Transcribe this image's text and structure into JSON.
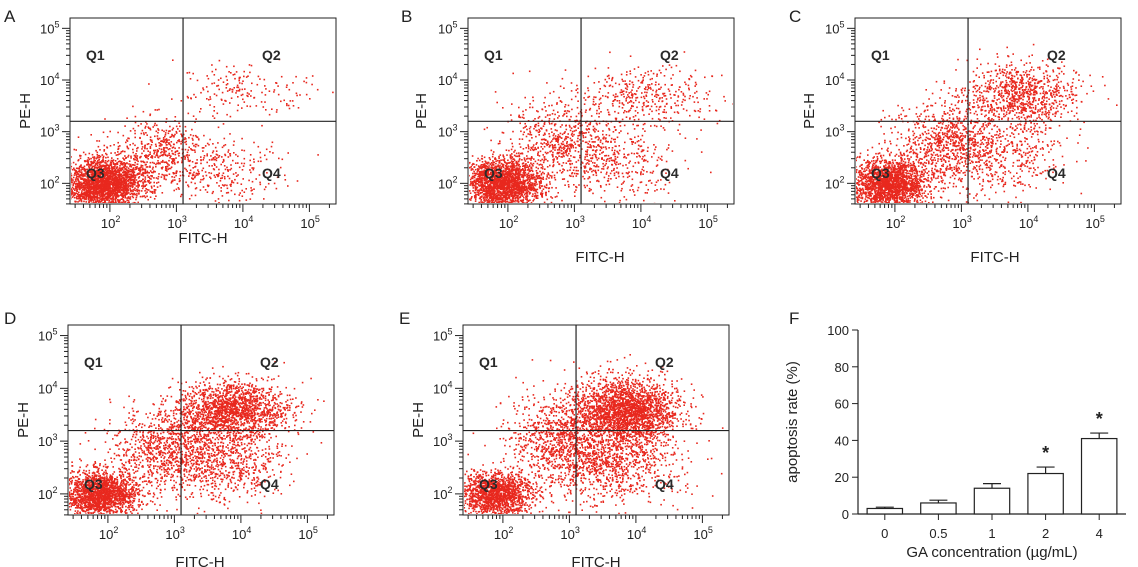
{
  "figure": {
    "panels": [
      {
        "letter": "A",
        "xlabel": "FITC-H",
        "ylabel": "PE-H"
      },
      {
        "letter": "B",
        "xlabel": "FITC-H",
        "ylabel": "PE-H"
      },
      {
        "letter": "C",
        "xlabel": "FITC-H",
        "ylabel": "PE-H"
      },
      {
        "letter": "D",
        "xlabel": "FITC-H",
        "ylabel": "PE-H"
      },
      {
        "letter": "E",
        "xlabel": "FITC-H",
        "ylabel": "PE-H"
      },
      {
        "letter": "F"
      }
    ],
    "quadrant_labels": [
      "Q1",
      "Q2",
      "Q3",
      "Q4"
    ]
  },
  "colors": {
    "dots": "#e8281e",
    "ink": "#222222"
  },
  "chart_data": [
    {
      "type": "scatter",
      "panel": "A",
      "xlabel": "FITC-H",
      "ylabel": "PE-H",
      "scale": "log10",
      "x_ticks": [
        2,
        3,
        4,
        5
      ],
      "y_ticks": [
        2,
        3,
        4,
        5
      ],
      "xlim": [
        1.4,
        5.4
      ],
      "ylim": [
        1.6,
        5.2
      ],
      "gate": {
        "x": 3.1,
        "y": 3.2
      },
      "populations": [
        {
          "quadrant": "Q3",
          "center": [
            1.9,
            2.0
          ],
          "spread": [
            0.3,
            0.25
          ],
          "count": 2400
        },
        {
          "quadrant": "Q4",
          "center": [
            3.6,
            2.3
          ],
          "spread": [
            0.5,
            0.35
          ],
          "count": 300
        },
        {
          "quadrant": "Q2",
          "center": [
            4.0,
            3.8
          ],
          "spread": [
            0.5,
            0.25
          ],
          "count": 180
        },
        {
          "quadrant": "Q3-Q4 bridge",
          "center": [
            2.7,
            2.6
          ],
          "spread": [
            0.35,
            0.35
          ],
          "count": 500
        }
      ]
    },
    {
      "type": "scatter",
      "panel": "B",
      "xlabel": "FITC-H",
      "ylabel": "PE-H",
      "scale": "log10",
      "x_ticks": [
        2,
        3,
        4,
        5
      ],
      "y_ticks": [
        2,
        3,
        4,
        5
      ],
      "xlim": [
        1.4,
        5.4
      ],
      "ylim": [
        1.6,
        5.2
      ],
      "gate": {
        "x": 3.1,
        "y": 3.2
      },
      "populations": [
        {
          "quadrant": "Q3",
          "center": [
            1.9,
            2.0
          ],
          "spread": [
            0.3,
            0.25
          ],
          "count": 2200
        },
        {
          "quadrant": "Q4",
          "center": [
            3.6,
            2.4
          ],
          "spread": [
            0.5,
            0.4
          ],
          "count": 350
        },
        {
          "quadrant": "Q2",
          "center": [
            4.0,
            3.7
          ],
          "spread": [
            0.55,
            0.3
          ],
          "count": 400
        },
        {
          "quadrant": "Q3-Q4 bridge",
          "center": [
            2.8,
            2.8
          ],
          "spread": [
            0.4,
            0.4
          ],
          "count": 600
        }
      ]
    },
    {
      "type": "scatter",
      "panel": "C",
      "xlabel": "FITC-H",
      "ylabel": "PE-H",
      "scale": "log10",
      "x_ticks": [
        2,
        3,
        4,
        5
      ],
      "y_ticks": [
        2,
        3,
        4,
        5
      ],
      "xlim": [
        1.4,
        5.4
      ],
      "ylim": [
        1.6,
        5.2
      ],
      "gate": {
        "x": 3.1,
        "y": 3.2
      },
      "populations": [
        {
          "quadrant": "Q3",
          "center": [
            1.9,
            2.0
          ],
          "spread": [
            0.3,
            0.25
          ],
          "count": 2000
        },
        {
          "quadrant": "Q4",
          "center": [
            3.6,
            2.5
          ],
          "spread": [
            0.5,
            0.4
          ],
          "count": 400
        },
        {
          "quadrant": "Q2",
          "center": [
            3.9,
            3.7
          ],
          "spread": [
            0.45,
            0.3
          ],
          "count": 900
        },
        {
          "quadrant": "Q3-Q4 bridge",
          "center": [
            2.8,
            2.8
          ],
          "spread": [
            0.4,
            0.4
          ],
          "count": 800
        }
      ]
    },
    {
      "type": "scatter",
      "panel": "D",
      "xlabel": "FITC-H",
      "ylabel": "PE-H",
      "scale": "log10",
      "x_ticks": [
        2,
        3,
        4,
        5
      ],
      "y_ticks": [
        2,
        3,
        4,
        5
      ],
      "xlim": [
        1.4,
        5.4
      ],
      "ylim": [
        1.6,
        5.2
      ],
      "gate": {
        "x": 3.1,
        "y": 3.2
      },
      "populations": [
        {
          "quadrant": "Q3",
          "center": [
            1.9,
            2.0
          ],
          "spread": [
            0.28,
            0.22
          ],
          "count": 1800
        },
        {
          "quadrant": "Q4",
          "center": [
            3.7,
            2.6
          ],
          "spread": [
            0.5,
            0.4
          ],
          "count": 700
        },
        {
          "quadrant": "Q2",
          "center": [
            3.9,
            3.6
          ],
          "spread": [
            0.4,
            0.28
          ],
          "count": 1600
        },
        {
          "quadrant": "Q3-Q4 bridge",
          "center": [
            2.9,
            2.9
          ],
          "spread": [
            0.45,
            0.4
          ],
          "count": 900
        }
      ]
    },
    {
      "type": "scatter",
      "panel": "E",
      "xlabel": "FITC-H",
      "ylabel": "PE-H",
      "scale": "log10",
      "x_ticks": [
        2,
        3,
        4,
        5
      ],
      "y_ticks": [
        2,
        3,
        4,
        5
      ],
      "xlim": [
        1.4,
        5.4
      ],
      "ylim": [
        1.6,
        5.2
      ],
      "gate": {
        "x": 3.1,
        "y": 3.2
      },
      "populations": [
        {
          "quadrant": "Q3",
          "center": [
            1.9,
            2.0
          ],
          "spread": [
            0.28,
            0.22
          ],
          "count": 1500
        },
        {
          "quadrant": "Q4",
          "center": [
            3.7,
            2.6
          ],
          "spread": [
            0.5,
            0.4
          ],
          "count": 800
        },
        {
          "quadrant": "Q2",
          "center": [
            3.85,
            3.6
          ],
          "spread": [
            0.4,
            0.3
          ],
          "count": 2200
        },
        {
          "quadrant": "Q3-Q4 bridge",
          "center": [
            2.9,
            3.0
          ],
          "spread": [
            0.45,
            0.45
          ],
          "count": 1000
        }
      ]
    },
    {
      "type": "bar",
      "panel": "F",
      "categories": [
        "0",
        "0.5",
        "1",
        "2",
        "4"
      ],
      "values": [
        3,
        6,
        14,
        22,
        41
      ],
      "errors": [
        0.7,
        1.5,
        2.5,
        3.5,
        3
      ],
      "significance": [
        "",
        "",
        "",
        "*",
        "*"
      ],
      "xlabel": "GA concentration (µg/mL)",
      "ylabel": "apoptosis rate (%)",
      "ylim": [
        0,
        100
      ],
      "y_ticks": [
        0,
        20,
        40,
        60,
        80,
        100
      ]
    }
  ]
}
